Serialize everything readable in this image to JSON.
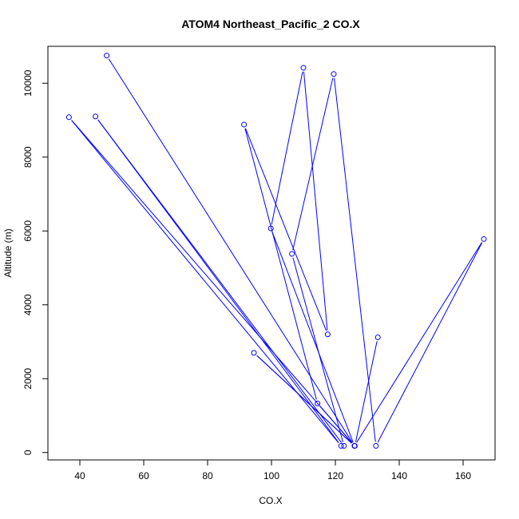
{
  "chart_data": {
    "type": "line",
    "title": "ATOM4 Northeast_Pacific_2 CO.X",
    "xlabel": "CO.X",
    "ylabel": "Altitude (m)",
    "xlim": [
      30,
      170
    ],
    "ylim": [
      -200,
      11000
    ],
    "x_ticks": [
      40,
      60,
      80,
      100,
      120,
      140,
      160
    ],
    "y_ticks": [
      0,
      2000,
      4000,
      6000,
      8000,
      10000
    ],
    "grid": false,
    "legend": "none",
    "colors": {
      "series": "#0000ff",
      "axis": "#000000"
    },
    "series": [
      {
        "x": [
          48.4,
          126.0,
          36.6,
          121.8,
          44.9,
          122.7,
          106.4,
          119.5,
          132.7,
          166.5,
          126.0,
          94.5,
          126.0,
          99.8,
          110.0,
          117.6,
          91.4,
          114.4,
          126.1,
          133.3
        ],
        "y": [
          10750,
          180,
          9080,
          180,
          9100,
          180,
          5380,
          10250,
          180,
          5780,
          180,
          2700,
          180,
          6070,
          10420,
          3200,
          8880,
          1330,
          180,
          3120
        ]
      }
    ]
  }
}
